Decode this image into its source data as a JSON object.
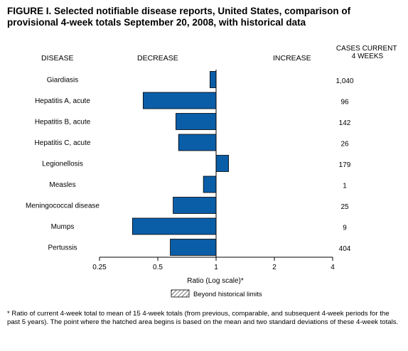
{
  "title": "FIGURE I. Selected notifiable disease reports, United States, comparison of provisional 4-week totals September 20, 2008, with historical data",
  "headers": {
    "disease": "DISEASE",
    "decrease": "DECREASE",
    "increase": "INCREASE",
    "cases": "CASES CURRENT 4 WEEKS"
  },
  "legend_label": "Beyond historical limits",
  "footnote": "* Ratio of current 4-week total to mean of 15 4-week totals (from previous, comparable, and subsequent 4-week periods for the past 5 years). The point where the hatched area begins is based on the mean and two standard deviations of these 4-week totals.",
  "colors": {
    "bar": "#0a5ea8",
    "bar_stroke": "#000000"
  },
  "chart_data": {
    "type": "bar",
    "orientation": "horizontal",
    "xscale": "log2",
    "xlabel": "Ratio (Log scale)*",
    "xlim": [
      0.25,
      4
    ],
    "baseline": 1,
    "xticks": [
      0.25,
      0.5,
      1,
      2,
      4
    ],
    "xtick_labels": [
      "0.25",
      "0.5",
      "1",
      "2",
      "4"
    ],
    "categories": [
      "Giardiasis",
      "Hepatitis A, acute",
      "Hepatitis B, acute",
      "Hepatitis C, acute",
      "Legionellosis",
      "Measles",
      "Meningococcal disease",
      "Mumps",
      "Pertussis"
    ],
    "values": [
      0.93,
      0.42,
      0.62,
      0.64,
      1.16,
      0.86,
      0.6,
      0.37,
      0.58
    ],
    "cases": [
      "1,040",
      "96",
      "142",
      "26",
      "179",
      "1",
      "25",
      "9",
      "404"
    ]
  }
}
